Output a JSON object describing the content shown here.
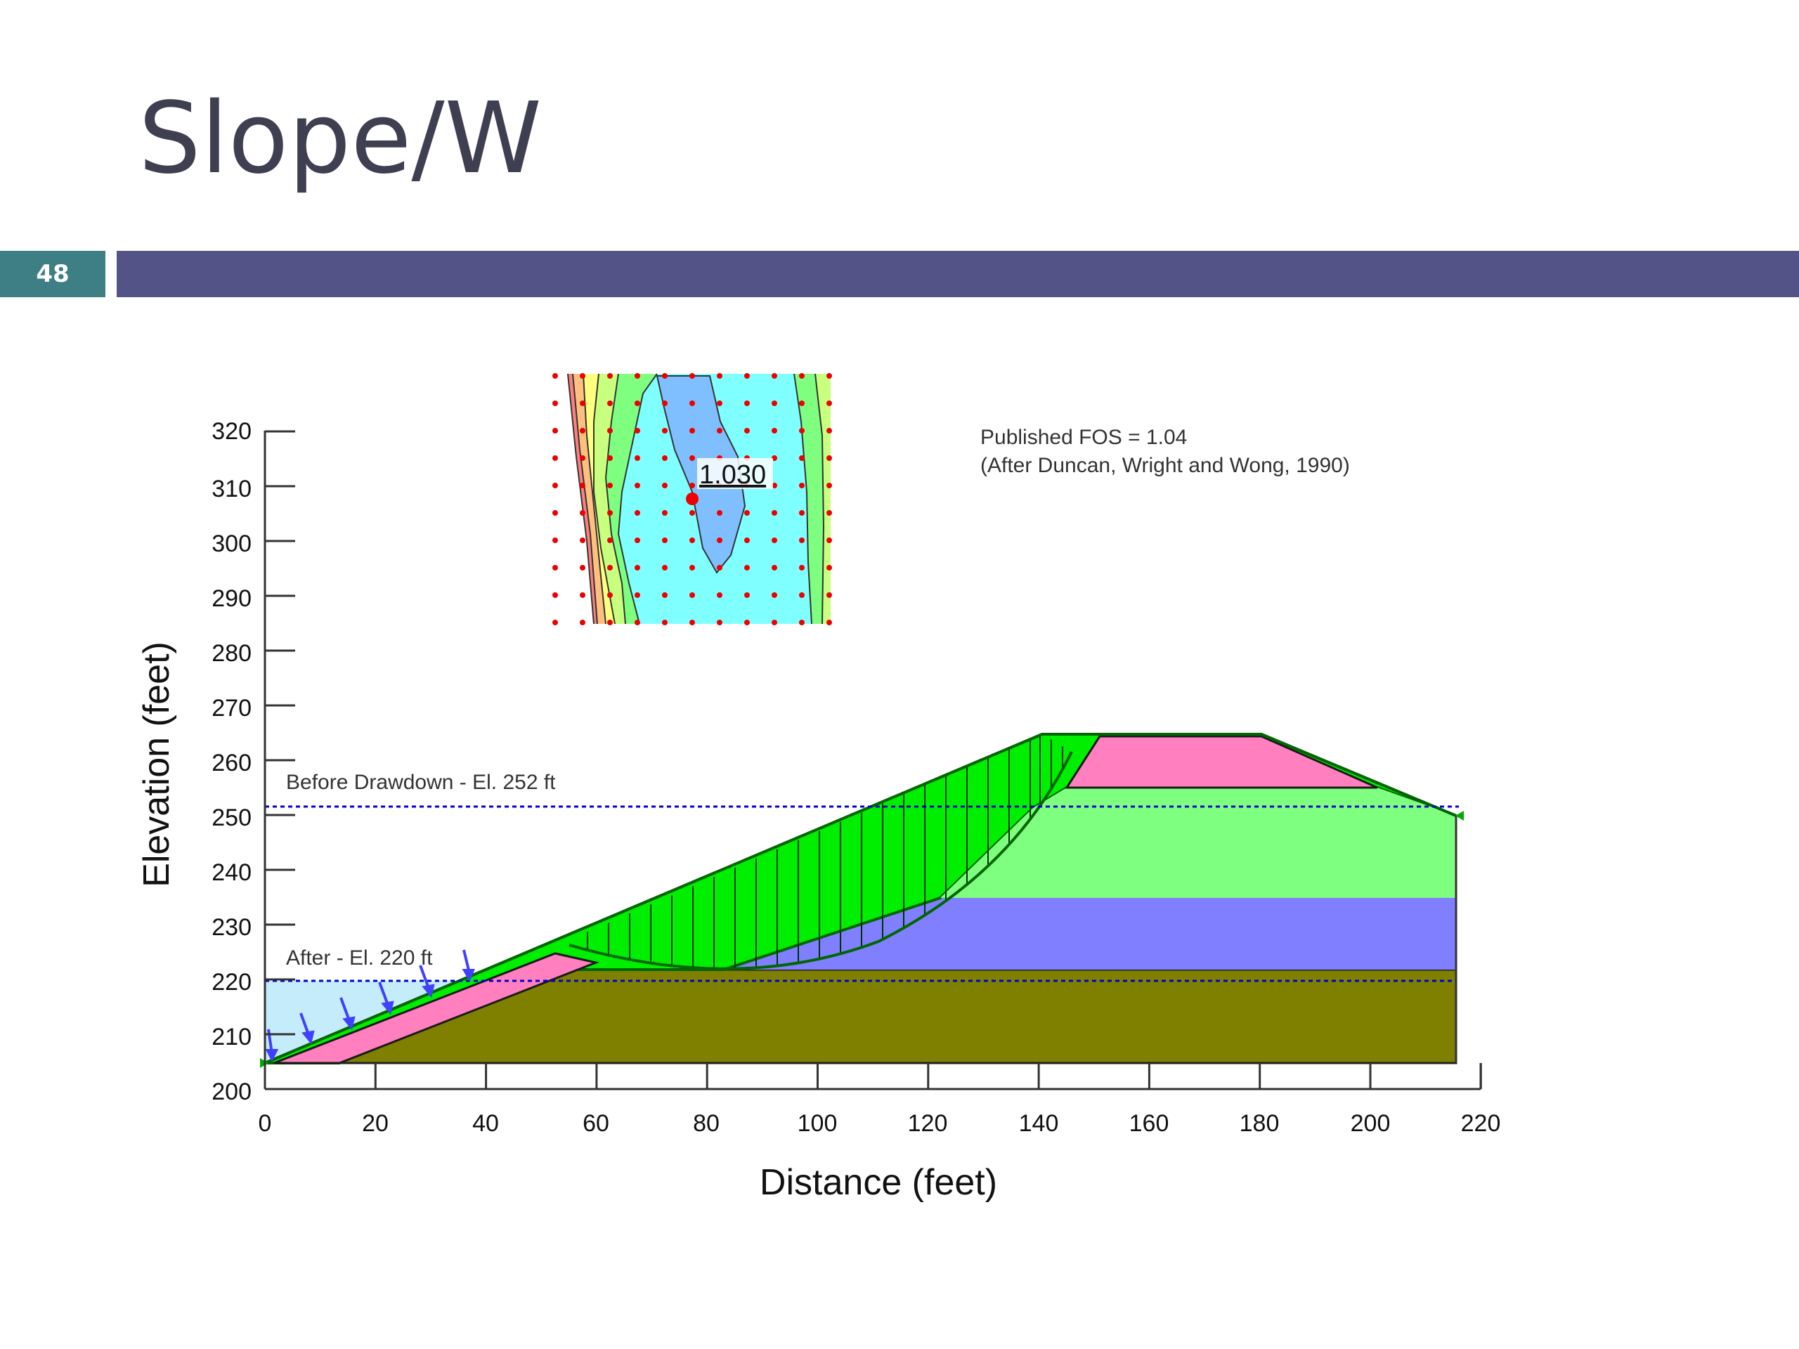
{
  "slide": {
    "title": "Slope/W",
    "page_number": "48"
  },
  "figure": {
    "xlabel": "Distance (feet)",
    "ylabel": "Elevation (feet)",
    "x_ticks": [
      "0",
      "20",
      "40",
      "60",
      "80",
      "100",
      "120",
      "140",
      "160",
      "180",
      "200",
      "220"
    ],
    "y_ticks": [
      "200",
      "210",
      "220",
      "230",
      "240",
      "250",
      "260",
      "270",
      "280",
      "290",
      "300",
      "310",
      "320"
    ],
    "xlim": [
      0,
      220
    ],
    "ylim": [
      200,
      320
    ],
    "annotations": {
      "before_drawdown": "Before Drawdown - El. 252 ft",
      "after_drawdown": "After - El. 220 ft",
      "published_fos": "Published FOS = 1.04",
      "reference": "(After Duncan, Wright and Wong, 1990)",
      "critical_fos": "1.030"
    },
    "water_levels": {
      "before_elevation": 252,
      "after_elevation": 220
    },
    "colors": {
      "bar": "#535387",
      "page_box": "#3e7f86",
      "embankment": "#00ee00",
      "upper_core": "#7fff7f",
      "clay_layer": "#7f7fff",
      "foundation": "#7f7f00",
      "riprap": "#ff7fbf",
      "reservoir": "#c4ecfa",
      "water_line": "#0000cc"
    }
  }
}
